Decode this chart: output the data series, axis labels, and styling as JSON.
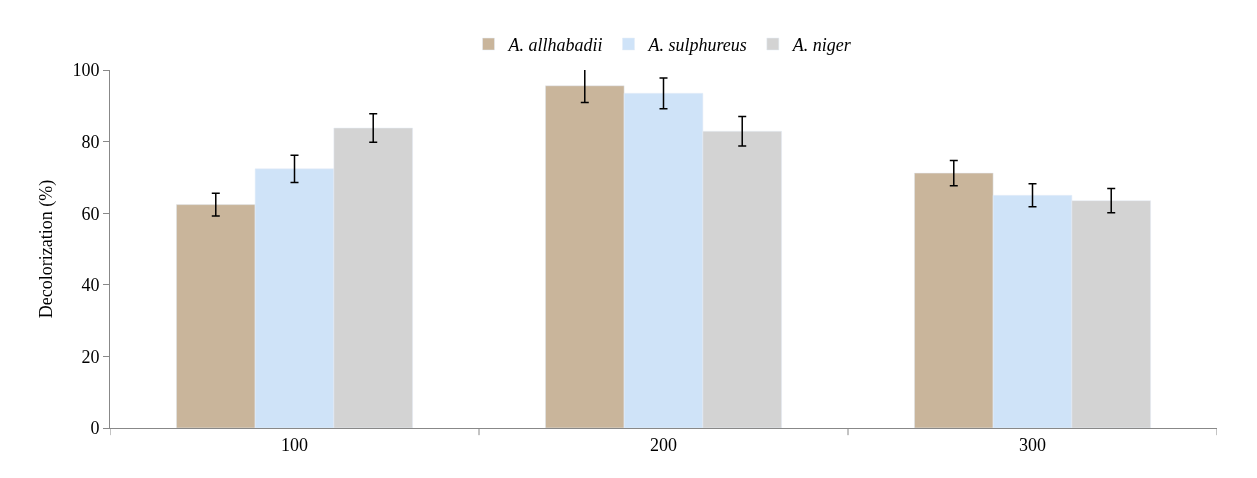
{
  "chart_data": {
    "type": "bar",
    "ylabel": "Decolorization (%)",
    "categories": [
      "100",
      "200",
      "300"
    ],
    "series": [
      {
        "name": "A. allhabadii",
        "color": "#c9b59b",
        "values": [
          62.4,
          95.6,
          71.2
        ],
        "errors": [
          3.2,
          4.7,
          3.5
        ]
      },
      {
        "name": "A. sulphureus",
        "color": "#cfe3f8",
        "values": [
          72.4,
          93.5,
          65
        ],
        "errors": [
          3.8,
          4.3,
          3.2
        ]
      },
      {
        "name": "A. niger",
        "color": "#d3d3d3",
        "values": [
          83.8,
          82.9,
          63.5
        ],
        "errors": [
          4,
          4.1,
          3.4
        ]
      }
    ],
    "ylim": [
      0,
      100
    ],
    "yticks": [
      0,
      20,
      40,
      60,
      80,
      100
    ],
    "legend": "top"
  }
}
